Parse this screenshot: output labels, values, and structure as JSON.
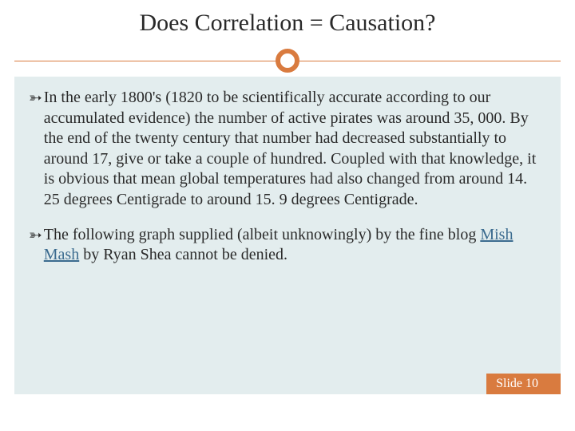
{
  "title": "Does Correlation = Causation?",
  "accent_color": "#d97b3f",
  "content_bg": "#e3edee",
  "link_color": "#3b6b8f",
  "paragraphs": [
    {
      "pre": "In the early 1800's (1820 to be scientifically accurate according to our accumulated evidence) the number of active pirates was around 35, 000. By the end of the twenty century that number had decreased substantially to around 17, give or take a couple of hundred. Coupled with that knowledge, it is obvious that mean global temperatures had also changed from around 14. 25 degrees Centigrade to around 15. 9 degrees Centigrade.",
      "link": "",
      "post": ""
    },
    {
      "pre": "The following graph supplied (albeit unknowingly) by the fine blog ",
      "link": "Mish Mash",
      "post": " by Ryan Shea cannot be denied."
    }
  ],
  "footer": "Slide 10"
}
